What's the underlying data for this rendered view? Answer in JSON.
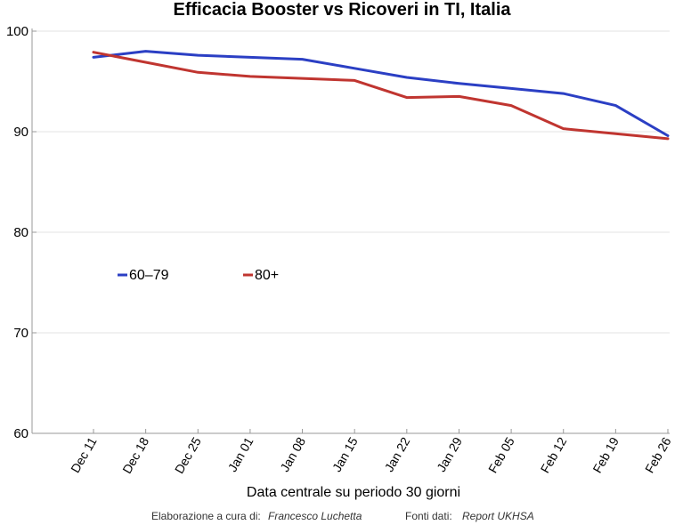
{
  "chart_data": {
    "type": "line",
    "title": "Efficacia Booster vs Ricoveri in TI, Italia",
    "xlabel": "Data centrale su periodo 30 giorni",
    "ylabel": "",
    "ylim": [
      60,
      100
    ],
    "yticks": [
      60,
      70,
      80,
      90,
      100
    ],
    "grid": "horizontal",
    "legend_position": "middle-left",
    "categories": [
      "Dec 11",
      "Dec 18",
      "Dec 25",
      "Jan 01",
      "Jan 08",
      "Jan 15",
      "Jan 22",
      "Jan 29",
      "Feb 05",
      "Feb 12",
      "Feb 19",
      "Feb 26"
    ],
    "series": [
      {
        "name": "60–79",
        "color": "#2b3fc4",
        "values": [
          97.4,
          98.0,
          97.6,
          97.4,
          97.2,
          96.3,
          95.4,
          94.8,
          94.3,
          93.8,
          92.6,
          89.6
        ]
      },
      {
        "name": "80+",
        "color": "#c03530",
        "values": [
          97.9,
          96.9,
          95.9,
          95.5,
          95.3,
          95.1,
          93.4,
          93.5,
          92.6,
          90.3,
          89.8,
          89.3
        ]
      }
    ]
  },
  "credits": {
    "elaborazione_label": "Elaborazione a cura di:",
    "author": "Francesco Luchetta",
    "fonti_label": "Fonti dati:",
    "source": "Report UKHSA"
  }
}
